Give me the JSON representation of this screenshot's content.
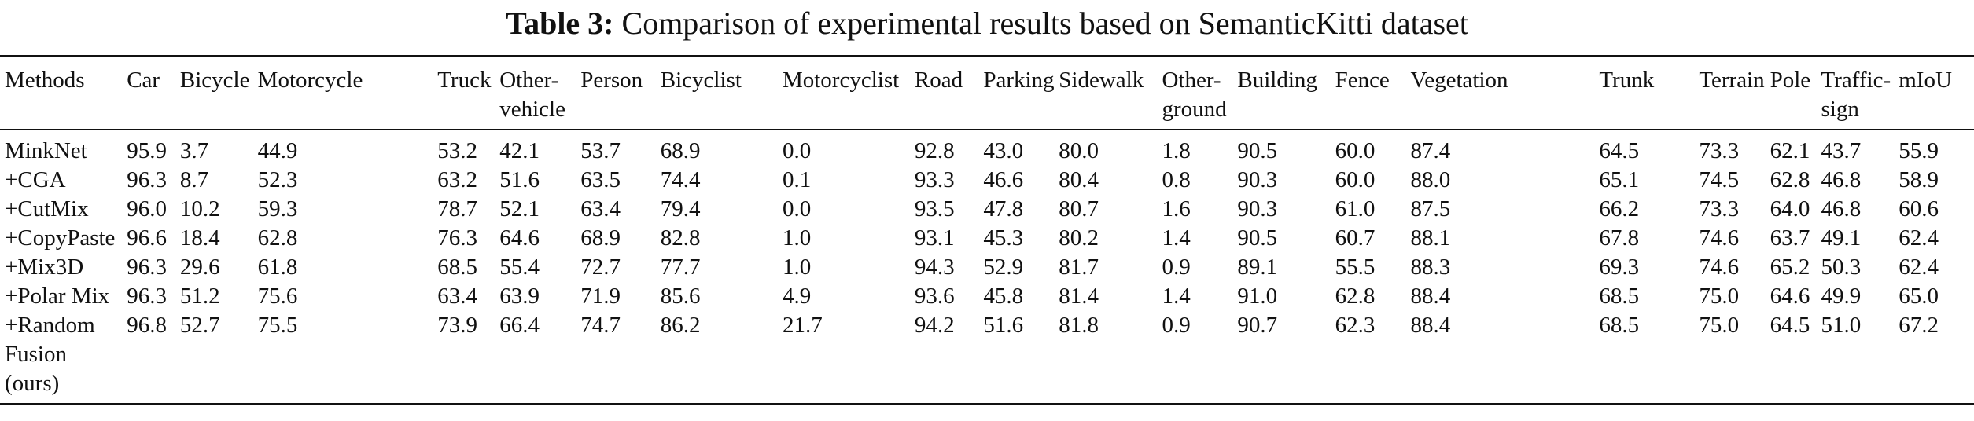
{
  "caption": {
    "label": "Table 3:",
    "text": "Comparison of experimental results based on SemanticKitti dataset"
  },
  "table": {
    "headers": [
      "Methods",
      "Car",
      "Bicycle",
      "Motorcycle",
      "Truck",
      "Other-vehicle",
      "Person",
      "Bicyclist",
      "Motorcyclist",
      "Road",
      "Parking",
      "Sidewalk",
      "Other-ground",
      "Building",
      "Fence",
      "Vegetation",
      "Trunk",
      "Terrain",
      "Pole",
      "Traffic-sign",
      "mIoU"
    ],
    "rows": [
      [
        "MinkNet",
        "95.9",
        "3.7",
        "44.9",
        "53.2",
        "42.1",
        "53.7",
        "68.9",
        "0.0",
        "92.8",
        "43.0",
        "80.0",
        "1.8",
        "90.5",
        "60.0",
        "87.4",
        "64.5",
        "73.3",
        "62.1",
        "43.7",
        "55.9"
      ],
      [
        "+CGA",
        "96.3",
        "8.7",
        "52.3",
        "63.2",
        "51.6",
        "63.5",
        "74.4",
        "0.1",
        "93.3",
        "46.6",
        "80.4",
        "0.8",
        "90.3",
        "60.0",
        "88.0",
        "65.1",
        "74.5",
        "62.8",
        "46.8",
        "58.9"
      ],
      [
        "+CutMix",
        "96.0",
        "10.2",
        "59.3",
        "78.7",
        "52.1",
        "63.4",
        "79.4",
        "0.0",
        "93.5",
        "47.8",
        "80.7",
        "1.6",
        "90.3",
        "61.0",
        "87.5",
        "66.2",
        "73.3",
        "64.0",
        "46.8",
        "60.6"
      ],
      [
        "+CopyPaste",
        "96.6",
        "18.4",
        "62.8",
        "76.3",
        "64.6",
        "68.9",
        "82.8",
        "1.0",
        "93.1",
        "45.3",
        "80.2",
        "1.4",
        "90.5",
        "60.7",
        "88.1",
        "67.8",
        "74.6",
        "63.7",
        "49.1",
        "62.4"
      ],
      [
        "+Mix3D",
        "96.3",
        "29.6",
        "61.8",
        "68.5",
        "55.4",
        "72.7",
        "77.7",
        "1.0",
        "94.3",
        "52.9",
        "81.7",
        "0.9",
        "89.1",
        "55.5",
        "88.3",
        "69.3",
        "74.6",
        "65.2",
        "50.3",
        "62.4"
      ],
      [
        "+Polar Mix",
        "96.3",
        "51.2",
        "75.6",
        "63.4",
        "63.9",
        "71.9",
        "85.6",
        "4.9",
        "93.6",
        "45.8",
        "81.4",
        "1.4",
        "91.0",
        "62.8",
        "88.4",
        "68.5",
        "75.0",
        "64.6",
        "49.9",
        "65.0"
      ],
      [
        "+Random Fusion (ours)",
        "96.8",
        "52.7",
        "75.5",
        "73.9",
        "66.4",
        "74.7",
        "86.2",
        "21.7",
        "94.2",
        "51.6",
        "81.8",
        "0.9",
        "90.7",
        "62.3",
        "88.4",
        "68.5",
        "75.0",
        "64.5",
        "51.0",
        "67.2"
      ]
    ]
  }
}
